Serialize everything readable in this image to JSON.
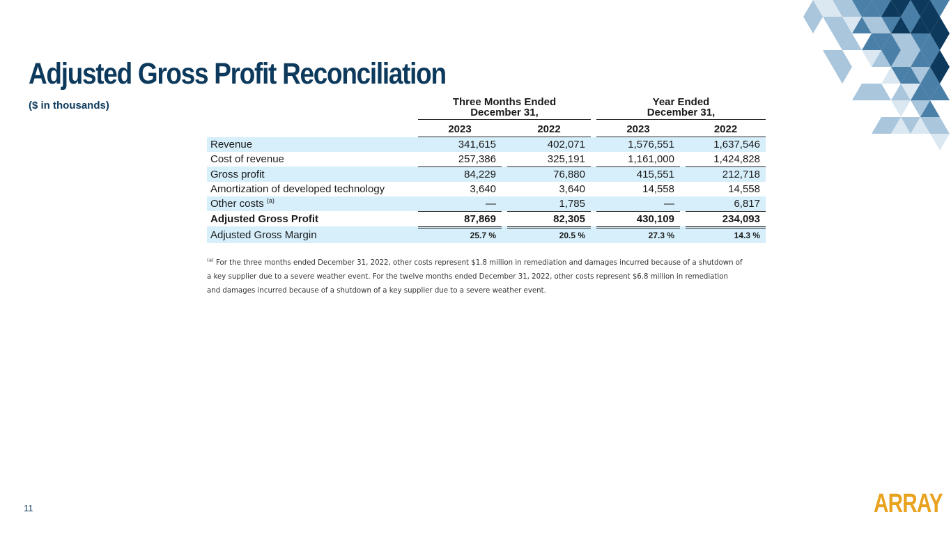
{
  "page": {
    "title": "Adjusted Gross Profit Reconciliation",
    "subtitle": "($ in thousands)",
    "page_number": "11",
    "logo_text": "ARRAY"
  },
  "table": {
    "groups": [
      {
        "line1": "Three Months Ended",
        "line2": "December 31,"
      },
      {
        "line1": "Year Ended",
        "line2": "December 31,"
      }
    ],
    "years": [
      "2023",
      "2022",
      "2023",
      "2022"
    ],
    "rows": [
      {
        "label": "Revenue",
        "values": [
          "341,615",
          "402,071",
          "1,576,551",
          "1,637,546"
        ]
      },
      {
        "label": "Cost of revenue",
        "values": [
          "257,386",
          "325,191",
          "1,161,000",
          "1,424,828"
        ]
      },
      {
        "label": "Gross profit",
        "values": [
          "84,229",
          "76,880",
          "415,551",
          "212,718"
        ]
      },
      {
        "label": "Amortization of developed technology",
        "values": [
          "3,640",
          "3,640",
          "14,558",
          "14,558"
        ]
      },
      {
        "label": "Other costs",
        "note": "(a)",
        "values": [
          "—",
          "1,785",
          "—",
          "6,817"
        ]
      },
      {
        "label": "Adjusted Gross Profit",
        "values": [
          "87,869",
          "82,305",
          "430,109",
          "234,093"
        ]
      },
      {
        "label": "Adjusted Gross Margin",
        "values": [
          "25.7 %",
          "20.5 %",
          "27.3 %",
          "14.3 %"
        ]
      }
    ]
  },
  "footnote": {
    "marker": "(a)",
    "text": "For the three months ended December 31, 2022, other costs represent $1.8 million in remediation and damages incurred because of a shutdown of a key supplier due to a severe weather event. For the twelve months ended December 31, 2022, other costs represent $6.8 million in remediation and damages incurred because of a shutdown of a key supplier due to a severe weather event."
  },
  "colors": {
    "title": "#0d3a5c",
    "row_shade": "#d6effb",
    "logo": "#e8a21d",
    "pattern_dark": "#0d3a5c",
    "pattern_mid": "#4a7fa8",
    "pattern_light": "#a9c6dc"
  }
}
